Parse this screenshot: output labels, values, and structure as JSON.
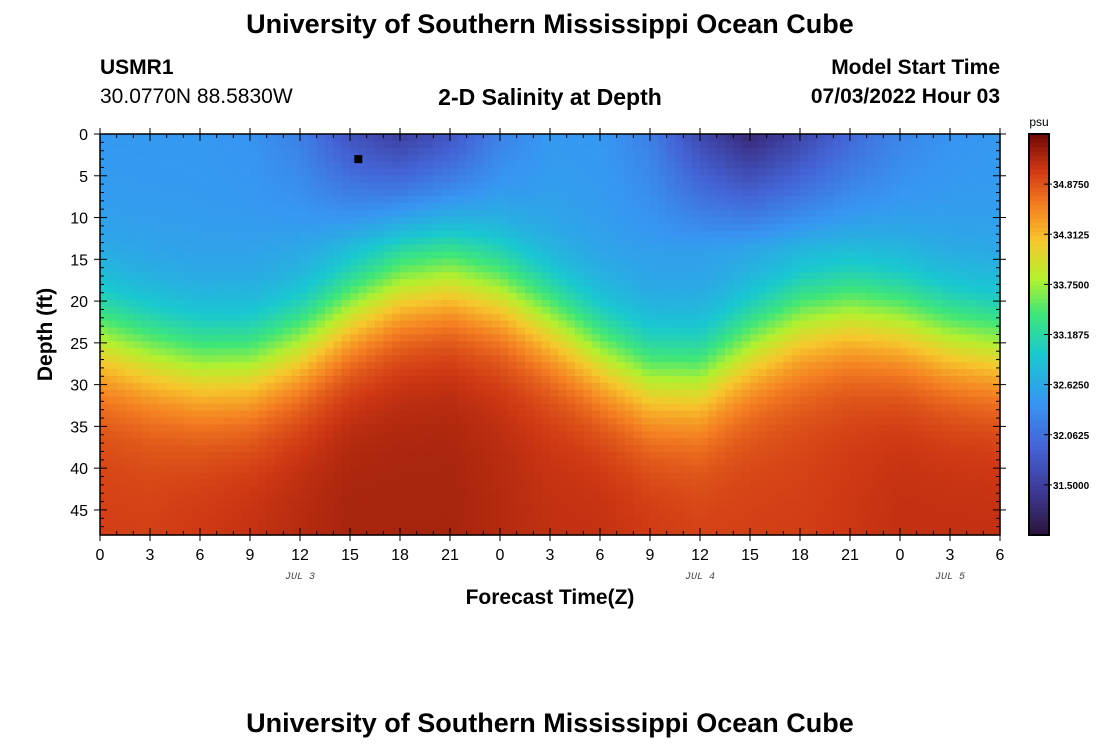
{
  "header": {
    "title": "University of Southern Mississippi Ocean Cube",
    "station_id": "USMR1",
    "station_coords": "30.0770N  88.5830W",
    "subtitle": "2-D Salinity at Depth",
    "model_start_label": "Model Start Time",
    "model_start_value": "07/03/2022 Hour 03"
  },
  "footer": {
    "title": "University of Southern Mississippi Ocean Cube"
  },
  "chart_data": {
    "type": "heatmap",
    "title": "2-D Salinity at Depth",
    "xlabel": "Forecast Time(Z)",
    "ylabel": "Depth (ft)",
    "x_unit": "hours since 07/03/2022 00Z",
    "xlim": [
      0,
      54
    ],
    "ylim": [
      0,
      48
    ],
    "y_inverted": true,
    "x_ticks": [
      {
        "x": 0,
        "label": "0"
      },
      {
        "x": 3,
        "label": "3"
      },
      {
        "x": 6,
        "label": "6"
      },
      {
        "x": 9,
        "label": "9"
      },
      {
        "x": 12,
        "label": "12"
      },
      {
        "x": 15,
        "label": "15"
      },
      {
        "x": 18,
        "label": "18"
      },
      {
        "x": 21,
        "label": "21"
      },
      {
        "x": 24,
        "label": "0"
      },
      {
        "x": 27,
        "label": "3"
      },
      {
        "x": 30,
        "label": "6"
      },
      {
        "x": 33,
        "label": "9"
      },
      {
        "x": 36,
        "label": "12"
      },
      {
        "x": 39,
        "label": "15"
      },
      {
        "x": 42,
        "label": "18"
      },
      {
        "x": 45,
        "label": "21"
      },
      {
        "x": 48,
        "label": "0"
      },
      {
        "x": 51,
        "label": "3"
      },
      {
        "x": 54,
        "label": "6"
      }
    ],
    "y_ticks": [
      0,
      5,
      10,
      15,
      20,
      25,
      30,
      35,
      40,
      45
    ],
    "date_labels": [
      {
        "x": 12,
        "label": "JUL 3"
      },
      {
        "x": 36,
        "label": "JUL 4"
      },
      {
        "x": 51,
        "label": "JUL 5"
      }
    ],
    "colorbar": {
      "unit": "psu",
      "min": 30.9375,
      "max": 35.4375,
      "ticks": [
        "34.8750",
        "34.3125",
        "33.7500",
        "33.1875",
        "32.6250",
        "32.0625",
        "31.5000"
      ]
    },
    "columns": {
      "x": [
        0,
        3,
        6,
        9,
        12,
        15,
        18,
        21,
        24,
        27,
        30,
        33,
        36,
        39,
        42,
        45,
        48,
        51,
        54
      ],
      "surface_salinity": [
        32.45,
        32.45,
        32.45,
        32.4,
        32.2,
        31.7,
        31.45,
        31.7,
        32.2,
        32.45,
        32.45,
        32.2,
        31.6,
        31.2,
        31.55,
        31.95,
        32.25,
        32.4,
        32.45
      ],
      "halocline_depth": [
        24,
        26,
        27.5,
        27.5,
        25,
        21,
        18,
        17,
        18.5,
        22,
        26,
        29,
        29,
        25,
        22,
        21,
        22,
        24,
        25
      ],
      "bottom_salinity": [
        35.0,
        35.0,
        35.05,
        35.1,
        35.15,
        35.2,
        35.2,
        35.2,
        35.15,
        35.1,
        35.1,
        35.05,
        35.0,
        35.0,
        35.0,
        35.05,
        35.1,
        35.1,
        35.1
      ]
    },
    "marker": {
      "x": 15.5,
      "y": 3
    }
  }
}
